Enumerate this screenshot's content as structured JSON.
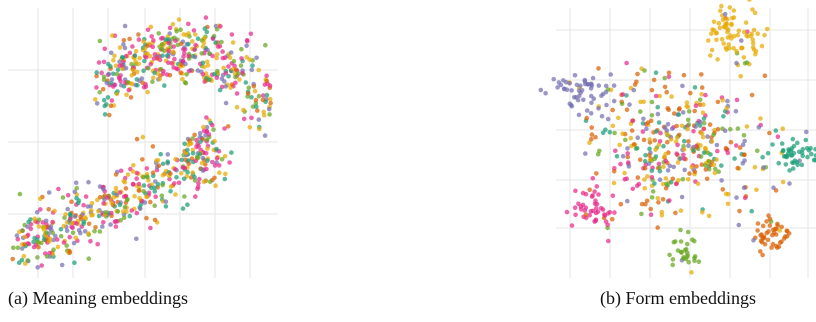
{
  "captions": {
    "a": "(a) Meaning embeddings",
    "b": "(b) Form embeddings"
  },
  "colors": {
    "gridline": "#e6e6e6",
    "palette": [
      "#1b9e77",
      "#d95f02",
      "#7570b3",
      "#e7298a",
      "#66a61e",
      "#e6ab02",
      "#a6761d"
    ]
  },
  "chart_data": [
    {
      "type": "scatter",
      "title": "(a) Meaning embeddings",
      "xlabel": "",
      "ylabel": "",
      "grid": true,
      "legend": "none",
      "point_count": 820,
      "clusters": [
        {
          "label": "upper arc",
          "center": [
            0.5,
            0.78
          ],
          "color": "mixed"
        },
        {
          "label": "lower band",
          "center": [
            0.35,
            0.25
          ],
          "color": "mixed"
        }
      ],
      "series_colors": [
        "#1b9e77",
        "#d95f02",
        "#7570b3",
        "#e7298a",
        "#66a61e",
        "#e6ab02"
      ]
    },
    {
      "type": "scatter",
      "title": "(b) Form embeddings",
      "xlabel": "",
      "ylabel": "",
      "grid": true,
      "legend": "none",
      "point_count": 780,
      "clusters": [
        {
          "label": "central mixed",
          "center": [
            0.5,
            0.5
          ],
          "color": "mixed"
        },
        {
          "label": "yellow",
          "center": [
            0.68,
            0.92
          ],
          "color": "#e6ab02"
        },
        {
          "label": "purple",
          "center": [
            0.1,
            0.76
          ],
          "color": "#7570b3"
        },
        {
          "label": "teal",
          "center": [
            0.95,
            0.47
          ],
          "color": "#1b9e77"
        },
        {
          "label": "pink",
          "center": [
            0.13,
            0.25
          ],
          "color": "#e7298a"
        },
        {
          "label": "orange",
          "center": [
            0.84,
            0.18
          ],
          "color": "#d95f02"
        },
        {
          "label": "green",
          "center": [
            0.45,
            0.07
          ],
          "color": "#66a61e"
        }
      ]
    }
  ]
}
